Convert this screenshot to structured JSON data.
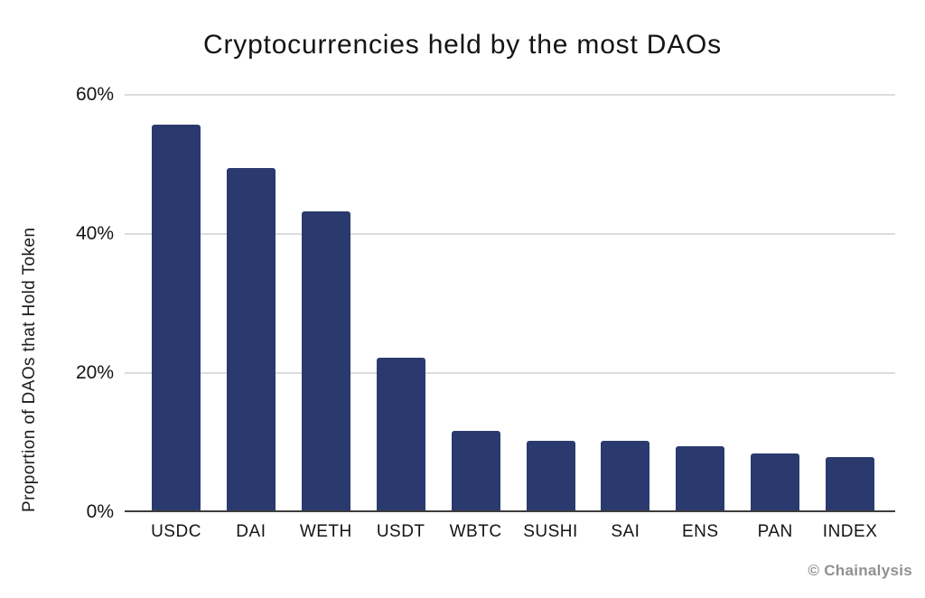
{
  "chart_data": {
    "type": "bar",
    "title": "Cryptocurrencies held by the most DAOs",
    "ylabel": "Proportion of DAOs that Hold Token",
    "xlabel": "",
    "categories": [
      "USDC",
      "DAI",
      "WETH",
      "USDT",
      "WBTC",
      "SUSHI",
      "SAI",
      "ENS",
      "PAN",
      "INDEX"
    ],
    "values": [
      55.5,
      49.2,
      43.0,
      22.0,
      11.4,
      10.0,
      10.0,
      9.2,
      8.2,
      7.6
    ],
    "ylim": [
      0,
      60
    ],
    "yticks": [
      {
        "value": 0,
        "label": "0%"
      },
      {
        "value": 20,
        "label": "20%"
      },
      {
        "value": 40,
        "label": "40%"
      },
      {
        "value": 60,
        "label": "60%"
      }
    ],
    "grid": "horizontal",
    "legend": "none",
    "bar_color": "#2b3a6e",
    "gridline_color": "#dcdcdc",
    "axis_line_color": "#3d3d3d"
  },
  "watermark": {
    "text": "© Chainalysis",
    "color": "#909090"
  }
}
